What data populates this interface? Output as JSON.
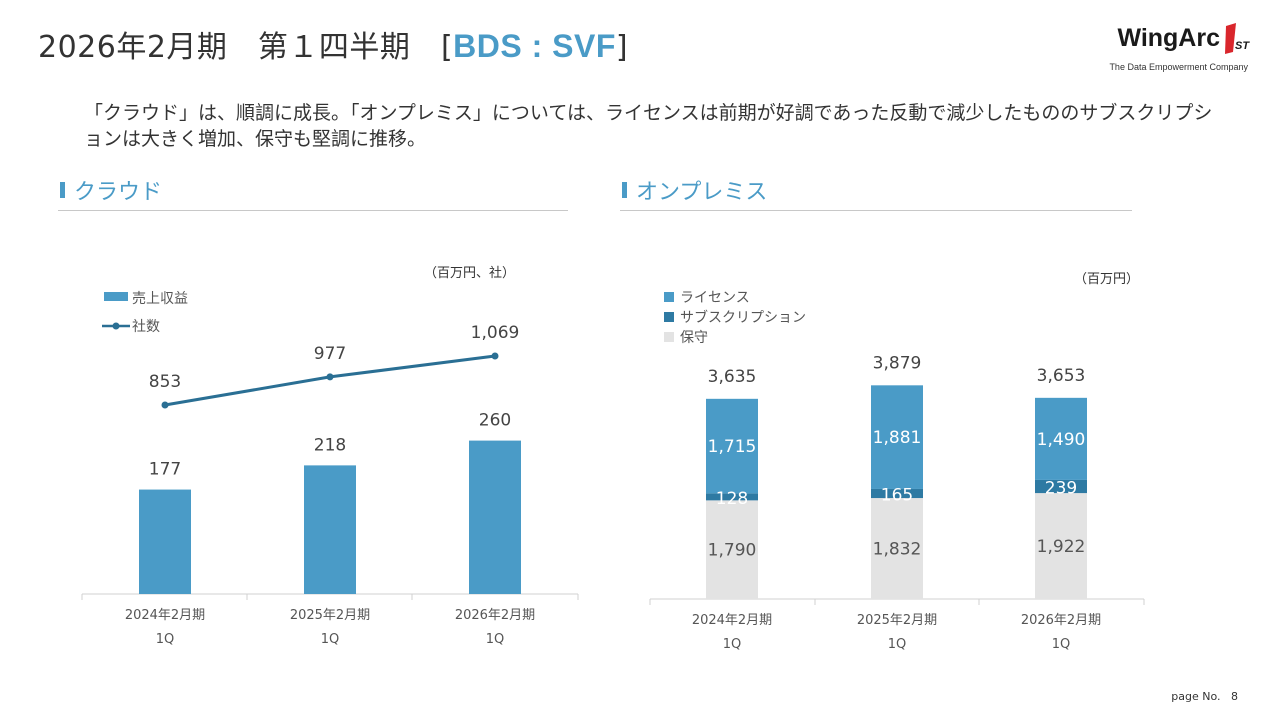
{
  "header": {
    "title_main": "2026年2月期　第１四半期　",
    "title_bracket_open": "[",
    "title_accent": "BDS : SVF",
    "title_bracket_close": "]"
  },
  "logo": {
    "name": "WingArc",
    "mark": "1ST",
    "tagline": "The Data Empowerment Company"
  },
  "summary": "「クラウド」は、順調に成長。「オンプレミス」については、ライセンスは前期が好調であった反動で減少したもののサブスクリプションは大きく増加、保守も堅調に推移。",
  "sections": {
    "cloud": {
      "title": "クラウド",
      "unit": "（百万円、社）"
    },
    "onprem": {
      "title": "オンプレミス",
      "unit": "（百万円）"
    }
  },
  "colors": {
    "accent": "#4a9bc7",
    "line": "#2a6f94",
    "subscription": "#2e7aa3",
    "maintenance": "#e3e3e3"
  },
  "chart_data": [
    {
      "type": "bar",
      "categories": [
        [
          "2024年2月期",
          "1Q"
        ],
        [
          "2025年2月期",
          "1Q"
        ],
        [
          "2026年2月期",
          "1Q"
        ]
      ],
      "series": [
        {
          "name": "売上収益",
          "type": "bar",
          "values": [
            177,
            218,
            260
          ]
        },
        {
          "name": "社数",
          "type": "line",
          "values": [
            853,
            977,
            1069
          ],
          "labels": [
            "853",
            "977",
            "1,069"
          ]
        }
      ],
      "legend": "top-left",
      "grid": false
    },
    {
      "type": "bar",
      "stacked": true,
      "categories": [
        [
          "2024年2月期",
          "1Q"
        ],
        [
          "2025年2月期",
          "1Q"
        ],
        [
          "2026年2月期",
          "1Q"
        ]
      ],
      "series": [
        {
          "name": "保守",
          "values": [
            1790,
            1832,
            1922
          ],
          "labels": [
            "1,790",
            "1,832",
            "1,922"
          ]
        },
        {
          "name": "サブスクリプション",
          "values": [
            128,
            165,
            239
          ],
          "labels": [
            "128",
            "165",
            "239"
          ]
        },
        {
          "name": "ライセンス",
          "values": [
            1715,
            1881,
            1490
          ],
          "labels": [
            "1,715",
            "1,881",
            "1,490"
          ]
        }
      ],
      "totals": [
        "3,635",
        "3,879",
        "3,653"
      ],
      "legend": "top-left",
      "grid": false
    }
  ],
  "footer": {
    "page_label": "page No.",
    "page_number": "8"
  }
}
